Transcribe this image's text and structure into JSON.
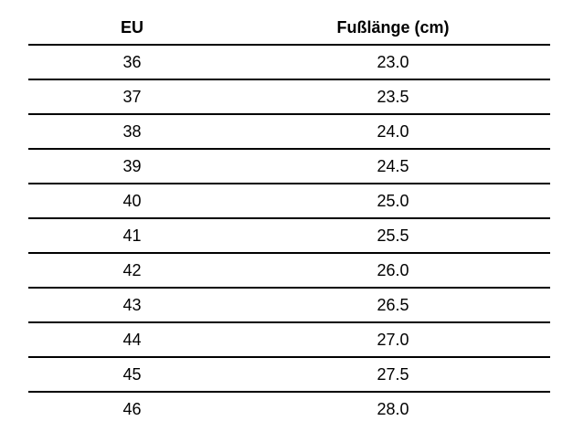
{
  "colors": {
    "background": "#ffffff",
    "text": "#000000",
    "rule": "#000000"
  },
  "table": {
    "headers": {
      "eu": "EU",
      "foot_length": "Fußlänge (cm)"
    },
    "rows": [
      {
        "eu": "36",
        "length": "23.0"
      },
      {
        "eu": "37",
        "length": "23.5"
      },
      {
        "eu": "38",
        "length": "24.0"
      },
      {
        "eu": "39",
        "length": "24.5"
      },
      {
        "eu": "40",
        "length": "25.0"
      },
      {
        "eu": "41",
        "length": "25.5"
      },
      {
        "eu": "42",
        "length": "26.0"
      },
      {
        "eu": "43",
        "length": "26.5"
      },
      {
        "eu": "44",
        "length": "27.0"
      },
      {
        "eu": "45",
        "length": "27.5"
      },
      {
        "eu": "46",
        "length": "28.0"
      }
    ]
  }
}
